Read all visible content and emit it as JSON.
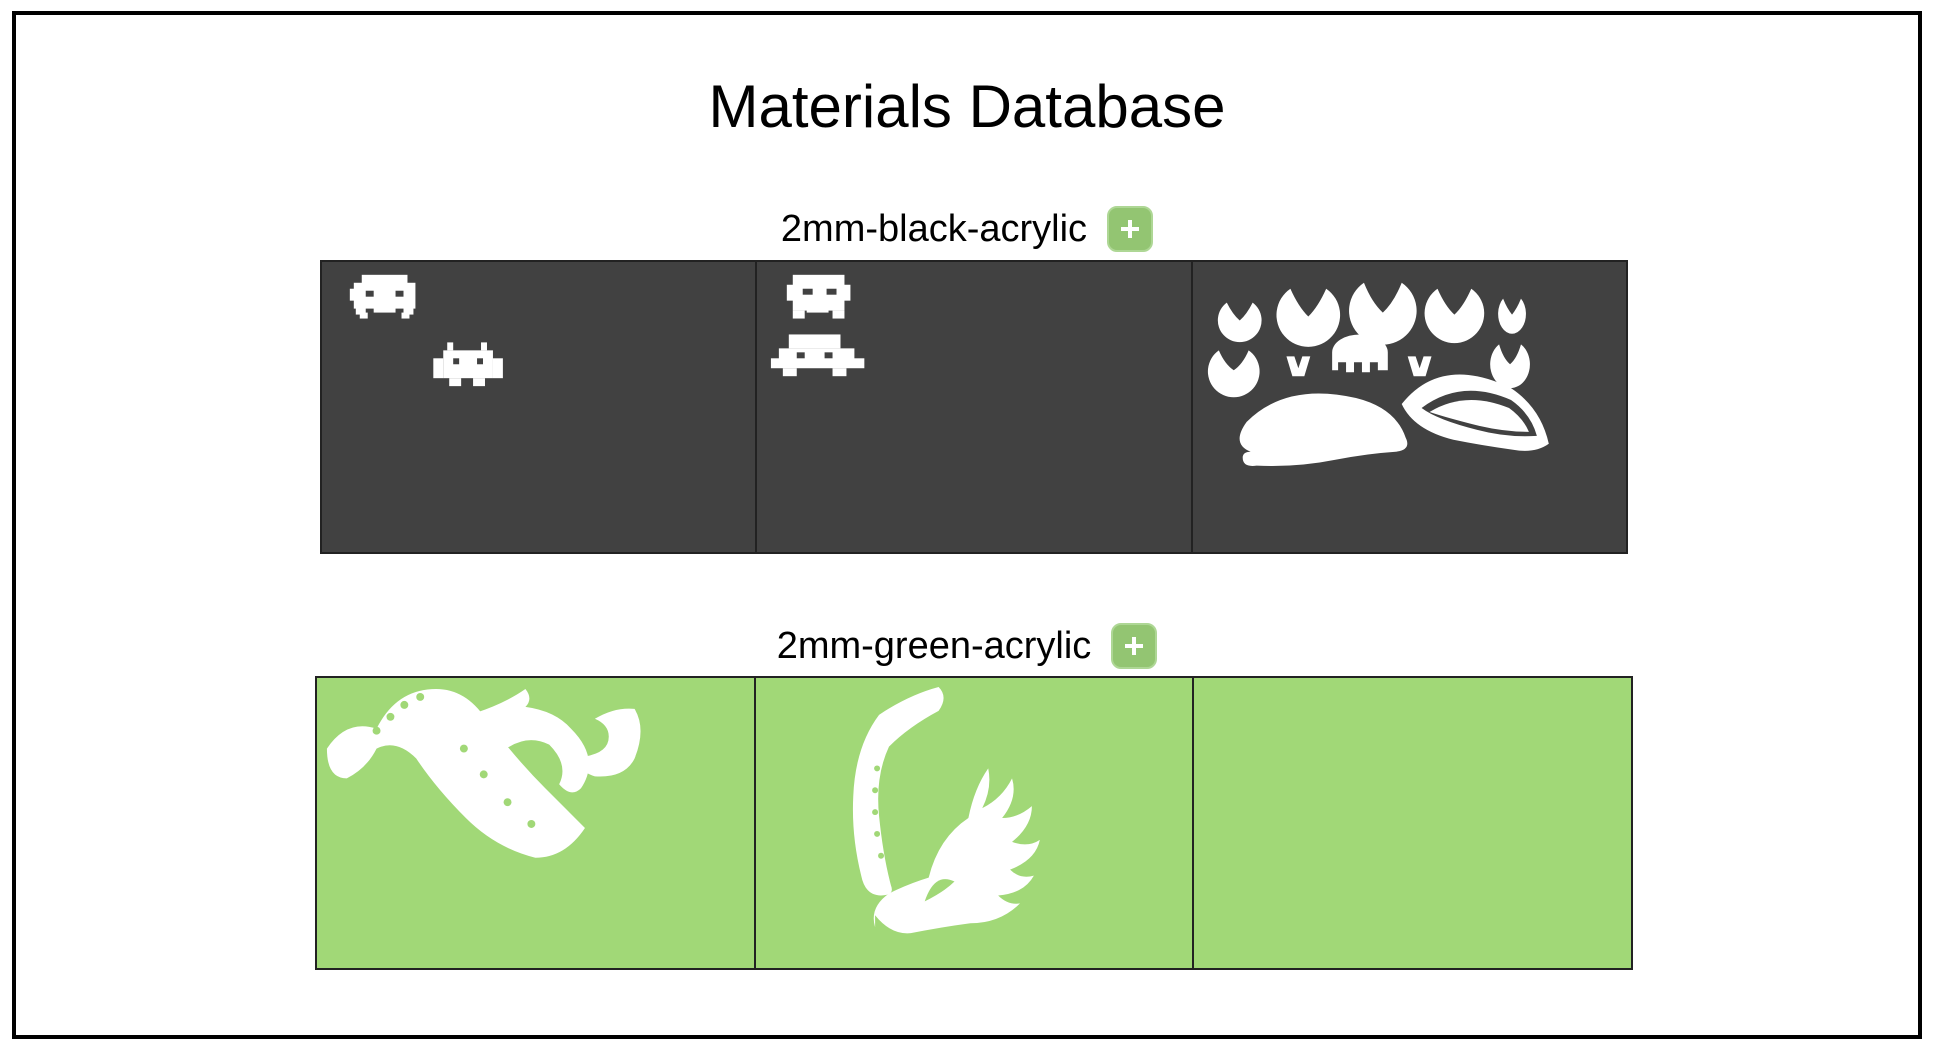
{
  "page": {
    "title": "Materials Database"
  },
  "materials": [
    {
      "name": "2mm-black-acrylic",
      "color": "#414141",
      "add_icon": "plus-icon",
      "sheets": [
        "sheet-1",
        "sheet-2",
        "sheet-3"
      ]
    },
    {
      "name": "2mm-green-acrylic",
      "color": "#a1d877",
      "add_icon": "plus-icon",
      "sheets": [
        "sheet-1",
        "sheet-2",
        "sheet-3"
      ]
    }
  ],
  "colors": {
    "accent": "#93c572",
    "cutout": "#ffffff",
    "border": "#222222"
  }
}
